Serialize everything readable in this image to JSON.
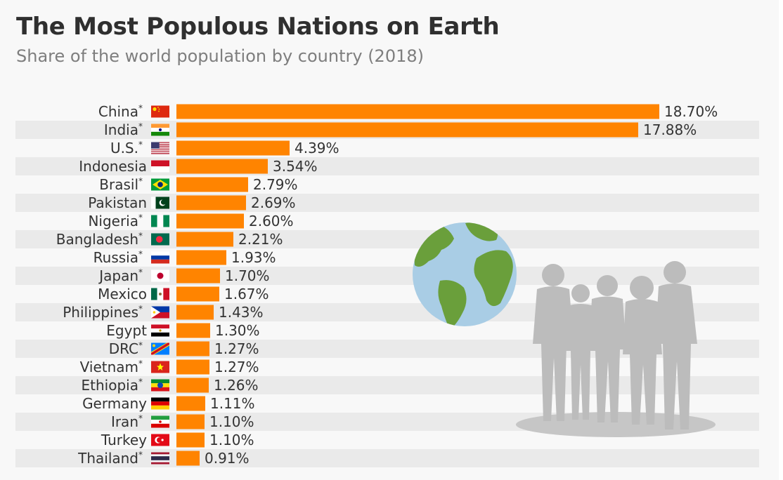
{
  "colors": {
    "bar": "#ff8400",
    "stripe": "#eaeaea",
    "label": "#333333",
    "globe_ocean": "#a9cde5",
    "globe_land": "#6a9f3b",
    "silhouette": "#bcbcbc"
  },
  "icons": [
    "globe-icon",
    "people-silhouette-icon"
  ],
  "chart_data": {
    "type": "bar",
    "orientation": "horizontal",
    "title": "The Most Populous Nations on Earth",
    "subtitle": "Share of the world population by country (2018)",
    "categories": [
      "China",
      "India",
      "U.S.",
      "Indonesia",
      "Brasil",
      "Pakistan",
      "Nigeria",
      "Bangladesh",
      "Russia",
      "Japan",
      "Mexico",
      "Philippines",
      "Egypt",
      "DRC",
      "Vietnam",
      "Ethiopia",
      "Germany",
      "Iran",
      "Turkey",
      "Thailand"
    ],
    "asterisk": [
      true,
      true,
      true,
      false,
      true,
      false,
      true,
      true,
      true,
      true,
      false,
      true,
      false,
      true,
      true,
      true,
      false,
      true,
      false,
      true
    ],
    "asterisk_symbol": "*",
    "flags": [
      "china-flag-icon",
      "india-flag-icon",
      "us-flag-icon",
      "indonesia-flag-icon",
      "brazil-flag-icon",
      "pakistan-flag-icon",
      "nigeria-flag-icon",
      "bangladesh-flag-icon",
      "russia-flag-icon",
      "japan-flag-icon",
      "mexico-flag-icon",
      "philippines-flag-icon",
      "egypt-flag-icon",
      "drc-flag-icon",
      "vietnam-flag-icon",
      "ethiopia-flag-icon",
      "germany-flag-icon",
      "iran-flag-icon",
      "turkey-flag-icon",
      "thailand-flag-icon"
    ],
    "values": [
      18.7,
      17.88,
      4.39,
      3.54,
      2.79,
      2.69,
      2.6,
      2.21,
      1.93,
      1.7,
      1.67,
      1.43,
      1.3,
      1.27,
      1.27,
      1.26,
      1.11,
      1.1,
      1.1,
      0.91
    ],
    "value_labels": [
      "18.70%",
      "17.88%",
      "4.39%",
      "3.54%",
      "2.79%",
      "2.69%",
      "2.60%",
      "2.21%",
      "1.93%",
      "1.70%",
      "1.67%",
      "1.43%",
      "1.30%",
      "1.27%",
      "1.27%",
      "1.26%",
      "1.11%",
      "1.10%",
      "1.10%",
      "0.91%"
    ],
    "unit": "%",
    "xlim": [
      0,
      18.7
    ],
    "grid": false,
    "legend": "none"
  }
}
